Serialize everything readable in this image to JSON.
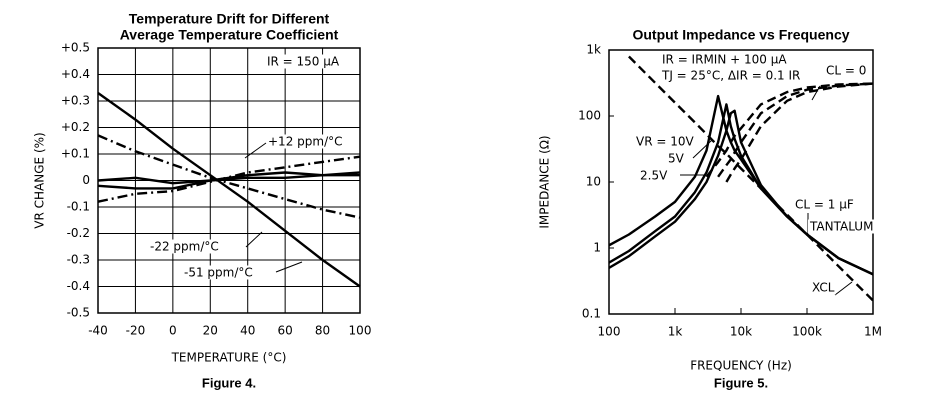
{
  "chart_data": [
    {
      "type": "line",
      "title": [
        "Temperature Drift for Different",
        "Average Temperature Coefficient"
      ],
      "x_label": "TEMPERATURE (°C)",
      "y_label": "VR CHANGE (%)",
      "caption": "Figure 4.",
      "x": [
        -40,
        -20,
        0,
        20,
        40,
        60,
        80,
        100
      ],
      "xlim": [
        -40,
        100
      ],
      "xticks": [
        -40,
        -20,
        0,
        20,
        40,
        60,
        80,
        100
      ],
      "ylim": [
        -0.5,
        0.5
      ],
      "yticks": [
        {
          "value": 0.5,
          "label": "+0.5"
        },
        {
          "value": 0.4,
          "label": "+0.4"
        },
        {
          "value": 0.3,
          "label": "+0.3"
        },
        {
          "value": 0.2,
          "label": "+0.2"
        },
        {
          "value": 0.1,
          "label": "+0.1"
        },
        0,
        -0.1,
        -0.2,
        -0.3,
        -0.4,
        -0.5
      ],
      "grid": true,
      "series": [
        {
          "color": "#000",
          "style": "solid",
          "values": [
            0.33,
            0.23,
            0.12,
            0.02,
            -0.08,
            -0.19,
            -0.3,
            -0.4
          ]
        },
        {
          "color": "#000",
          "style": "dashdot",
          "values": [
            0.17,
            0.11,
            0.06,
            0.01,
            -0.03,
            -0.07,
            -0.11,
            -0.14
          ]
        },
        {
          "color": "#000",
          "style": "dashdot",
          "values": [
            -0.08,
            -0.05,
            -0.04,
            -0.005,
            0.03,
            0.05,
            0.07,
            0.09
          ]
        },
        {
          "color": "#000",
          "style": "solid",
          "values": [
            0.0,
            0.01,
            -0.01,
            0.0,
            0.02,
            0.03,
            0.02,
            0.03
          ]
        },
        {
          "color": "#000",
          "style": "solid",
          "values": [
            -0.02,
            -0.03,
            -0.03,
            0.0,
            0.01,
            0.01,
            0.02,
            0.02
          ]
        }
      ],
      "annotations": [
        "IR = 150 μA",
        "+12 ppm/°C",
        "-22 ppm/°C",
        "-51 ppm/°C"
      ]
    },
    {
      "type": "line",
      "title": [
        "Output Impedance vs Frequency"
      ],
      "x_label": "FREQUENCY (Hz)",
      "y_label": "IMPEDANCE (Ω)",
      "caption": "Figure 5.",
      "x": [
        100,
        200,
        500,
        1000,
        2000,
        3000,
        4500,
        6000,
        7000,
        8000,
        10000,
        20000,
        50000,
        100000,
        300000,
        1000000
      ],
      "xscale": "log",
      "yscale": "log",
      "xlim": [
        100,
        1000000
      ],
      "xticks": [
        100,
        {
          "value": 1000,
          "label": "1k"
        },
        {
          "value": 10000,
          "label": "10k"
        },
        {
          "value": 100000,
          "label": "100k"
        },
        {
          "value": 1000000,
          "label": "1M"
        }
      ],
      "ylim": [
        0.1,
        1000
      ],
      "yticks": [
        0.1,
        1,
        10,
        100,
        {
          "value": 1000,
          "label": "1k"
        }
      ],
      "grid": false,
      "series": [
        {
          "color": "#000",
          "style": "solid",
          "values": [
            1.1,
            1.6,
            3,
            5,
            12,
            30,
            200,
            60,
            40,
            30,
            22,
            8,
            3,
            1.6,
            0.7,
            0.4
          ]
        },
        {
          "color": "#000",
          "style": "solid",
          "values": [
            0.6,
            0.9,
            1.8,
            3,
            7,
            14,
            40,
            150,
            70,
            45,
            25,
            8,
            3,
            1.6,
            0.7,
            0.4
          ]
        },
        {
          "color": "#000",
          "style": "solid",
          "values": [
            0.5,
            0.75,
            1.5,
            2.5,
            5.5,
            10,
            25,
            60,
            110,
            120,
            40,
            9,
            3,
            1.6,
            0.7,
            0.4
          ]
        },
        {
          "color": "#000",
          "style": "dashed",
          "values": [
            null,
            null,
            null,
            null,
            null,
            12,
            20,
            30,
            40,
            50,
            65,
            150,
            230,
            270,
            300,
            310
          ]
        },
        {
          "color": "#000",
          "style": "dashed",
          "values": [
            null,
            null,
            null,
            null,
            null,
            null,
            12,
            18,
            22,
            28,
            40,
            110,
            200,
            250,
            290,
            310
          ]
        },
        {
          "color": "#000",
          "style": "dashed",
          "values": [
            null,
            null,
            null,
            null,
            null,
            null,
            null,
            10,
            13,
            16,
            22,
            70,
            170,
            230,
            280,
            310
          ]
        },
        {
          "color": "#000",
          "style": "dashed",
          "values": [
            null,
            796,
            318,
            159,
            80,
            53,
            35,
            27,
            23,
            20,
            16,
            8,
            3.2,
            1.6,
            0.53,
            0.16
          ]
        }
      ],
      "annotations": [
        "IR = IRMIN + 100 μA",
        "TJ = 25°C, ΔIR = 0.1 IR",
        "CL = 0",
        "VR = 10V",
        "5V",
        "2.5V",
        "CL = 1 μF",
        "TANTALUM",
        "XCL"
      ]
    }
  ]
}
